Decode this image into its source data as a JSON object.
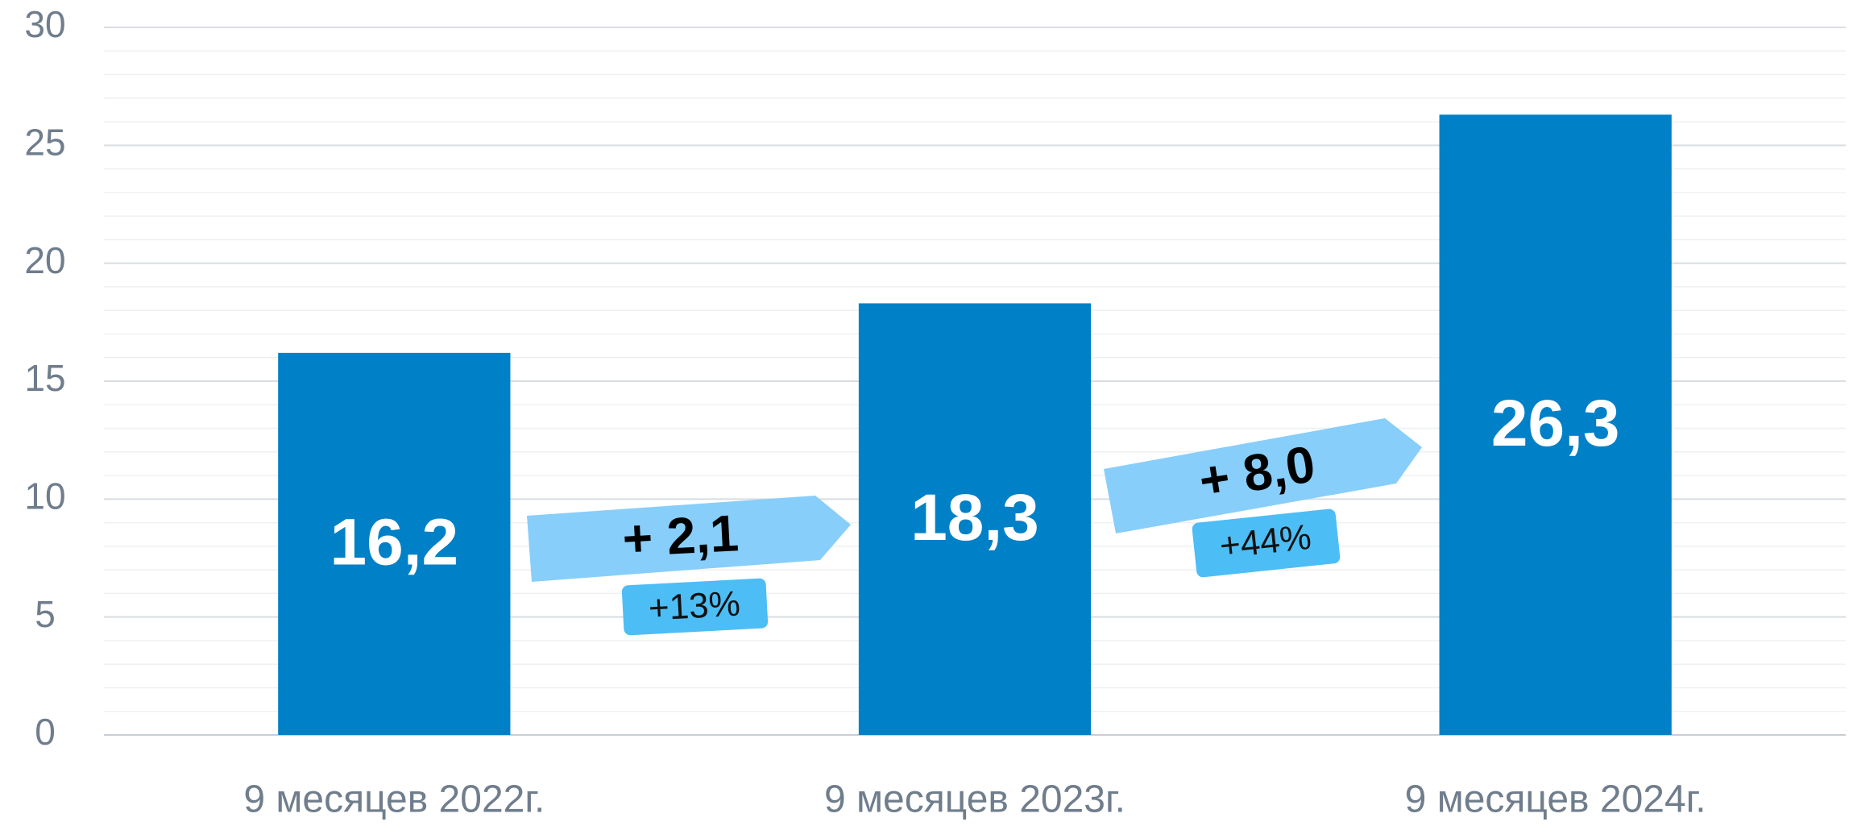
{
  "chart_data": {
    "type": "bar",
    "categories": [
      "9 месяцев 2022г.",
      "9 месяцев 2023г.",
      "9 месяцев 2024г."
    ],
    "values": [
      16.2,
      18.3,
      26.3
    ],
    "value_labels": [
      "16,2",
      "18,3",
      "26,3"
    ],
    "color": "#0080c6",
    "ylim": [
      0,
      30
    ],
    "yticks": [
      0,
      5,
      10,
      15,
      20,
      25,
      30
    ],
    "grid": true,
    "minor_grid": 5,
    "annotations": [
      {
        "text": "+ 2,1",
        "label": "+13%"
      },
      {
        "text": "+ 8,0",
        "label": "+44%"
      }
    ]
  }
}
